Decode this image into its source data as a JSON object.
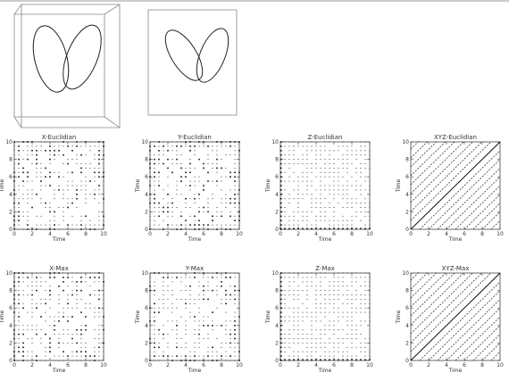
{
  "figure": {
    "header_rule": true
  },
  "chart_data": [
    {
      "type": "line",
      "view": "3d-box",
      "description_shape": "two-lobed butterfly curve",
      "title": ""
    },
    {
      "type": "line",
      "view": "2d-box",
      "description_shape": "two-lobed butterfly curve",
      "title": ""
    },
    {
      "type": "heatmap",
      "title": "X-Euclidian",
      "xlabel": "Time",
      "ylabel": "Time",
      "xlim": [
        0,
        10
      ],
      "ylim": [
        0,
        10
      ],
      "xticks": [
        "0",
        "2",
        "4",
        "6",
        "8",
        "10"
      ],
      "yticks": [
        "0",
        "2",
        "4",
        "6",
        "8",
        "10"
      ],
      "pattern": "dense",
      "grid_n": 20,
      "seed": 11
    },
    {
      "type": "heatmap",
      "title": "Y-Euclidian",
      "xlabel": "Time",
      "ylabel": "Time",
      "xlim": [
        0,
        10
      ],
      "ylim": [
        0,
        10
      ],
      "xticks": [
        "0",
        "2",
        "4",
        "6",
        "8",
        "10"
      ],
      "yticks": [
        "0",
        "2",
        "4",
        "6",
        "8",
        "10"
      ],
      "pattern": "dense",
      "grid_n": 20,
      "seed": 23
    },
    {
      "type": "heatmap",
      "title": "Z-Euclidian",
      "xlabel": "Time",
      "ylabel": "Time",
      "xlim": [
        0,
        10
      ],
      "ylim": [
        0,
        10
      ],
      "xticks": [
        "0",
        "2",
        "4",
        "6",
        "8",
        "10"
      ],
      "yticks": [
        "0",
        "2",
        "4",
        "6",
        "8",
        "10"
      ],
      "pattern": "sparse",
      "grid_n": 20,
      "seed": 37
    },
    {
      "type": "heatmap",
      "title": "XYZ-Euclidian",
      "xlabel": "Time",
      "ylabel": "Time",
      "xlim": [
        0,
        10
      ],
      "ylim": [
        0,
        10
      ],
      "xticks": [
        "0",
        "2",
        "4",
        "6",
        "8",
        "10"
      ],
      "yticks": [
        "0",
        "2",
        "4",
        "6",
        "8",
        "10"
      ],
      "pattern": "diagonal",
      "grid_n": 20,
      "seed": 41
    },
    {
      "type": "heatmap",
      "title": "X-Max",
      "xlabel": "Time",
      "ylabel": "Time",
      "xlim": [
        0,
        10
      ],
      "ylim": [
        0,
        10
      ],
      "xticks": [
        "0",
        "2",
        "4",
        "6",
        "8",
        "10"
      ],
      "yticks": [
        "0",
        "2",
        "4",
        "6",
        "8",
        "10"
      ],
      "pattern": "dense",
      "grid_n": 20,
      "seed": 53
    },
    {
      "type": "heatmap",
      "title": "Y-Max",
      "xlabel": "Time",
      "ylabel": "Time",
      "xlim": [
        0,
        10
      ],
      "ylim": [
        0,
        10
      ],
      "xticks": [
        "0",
        "2",
        "4",
        "6",
        "8",
        "10"
      ],
      "yticks": [
        "0",
        "2",
        "4",
        "6",
        "8",
        "10"
      ],
      "pattern": "dense",
      "grid_n": 20,
      "seed": 61
    },
    {
      "type": "heatmap",
      "title": "Z-Max",
      "xlabel": "Time",
      "ylabel": "Time",
      "xlim": [
        0,
        10
      ],
      "ylim": [
        0,
        10
      ],
      "xticks": [
        "0",
        "2",
        "4",
        "6",
        "8",
        "10"
      ],
      "yticks": [
        "0",
        "2",
        "4",
        "6",
        "8",
        "10"
      ],
      "pattern": "sparse",
      "grid_n": 20,
      "seed": 71
    },
    {
      "type": "heatmap",
      "title": "XYZ-Max",
      "xlabel": "Time",
      "ylabel": "Time",
      "xlim": [
        0,
        10
      ],
      "ylim": [
        0,
        10
      ],
      "xticks": [
        "0",
        "2",
        "4",
        "6",
        "8",
        "10"
      ],
      "yticks": [
        "0",
        "2",
        "4",
        "6",
        "8",
        "10"
      ],
      "pattern": "diagonal",
      "grid_n": 20,
      "seed": 83
    }
  ]
}
